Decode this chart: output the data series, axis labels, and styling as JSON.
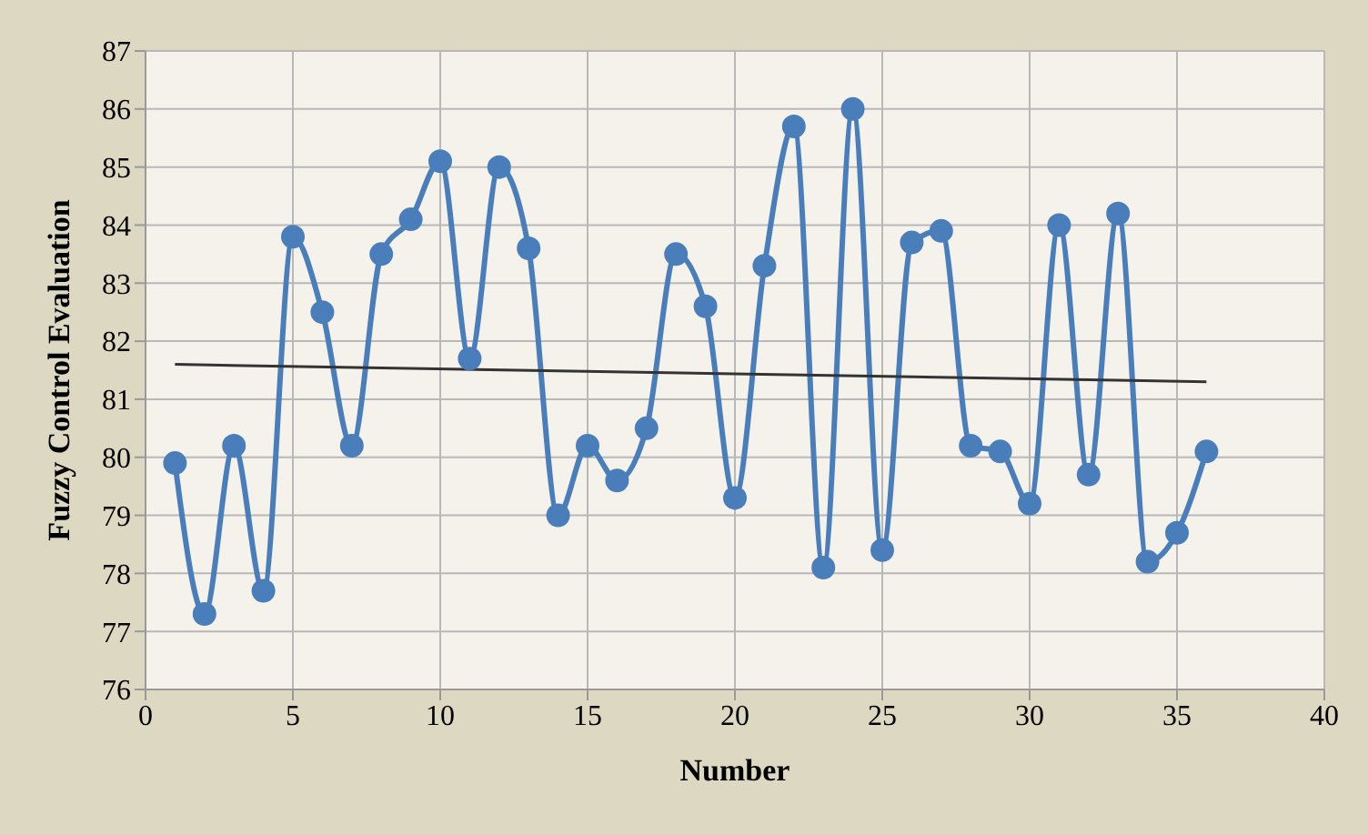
{
  "chart_data": {
    "type": "line",
    "xlabel": "Number",
    "ylabel": "Fuzzy Control Evaluation",
    "xlim": [
      0,
      40
    ],
    "xticks": [
      0,
      5,
      10,
      15,
      20,
      25,
      30,
      35,
      40
    ],
    "ylim": [
      76,
      87
    ],
    "yticks": [
      76,
      77,
      78,
      79,
      80,
      81,
      82,
      83,
      84,
      85,
      86,
      87
    ],
    "grid": true,
    "marker": "circle",
    "series": [
      {
        "color": "#4a7ebb",
        "x": [
          1,
          2,
          3,
          4,
          5,
          6,
          7,
          8,
          9,
          10,
          11,
          12,
          13,
          14,
          15,
          16,
          17,
          18,
          19,
          20,
          21,
          22,
          23,
          24,
          25,
          26,
          27,
          28,
          29,
          30,
          31,
          32,
          33,
          34,
          35,
          36
        ],
        "values": [
          79.9,
          77.3,
          80.2,
          77.7,
          83.8,
          82.5,
          80.2,
          83.5,
          84.1,
          85.1,
          81.7,
          85.0,
          83.6,
          79.0,
          80.2,
          79.6,
          80.5,
          83.5,
          82.6,
          79.3,
          83.3,
          85.7,
          78.1,
          86.0,
          78.4,
          83.7,
          83.9,
          80.2,
          80.1,
          79.2,
          84.0,
          79.7,
          84.2,
          78.2,
          78.7,
          80.1
        ]
      },
      {
        "type": "line",
        "color": "#333333",
        "marker": "none",
        "x": [
          1,
          36
        ],
        "values": [
          81.6,
          81.3
        ]
      }
    ]
  }
}
